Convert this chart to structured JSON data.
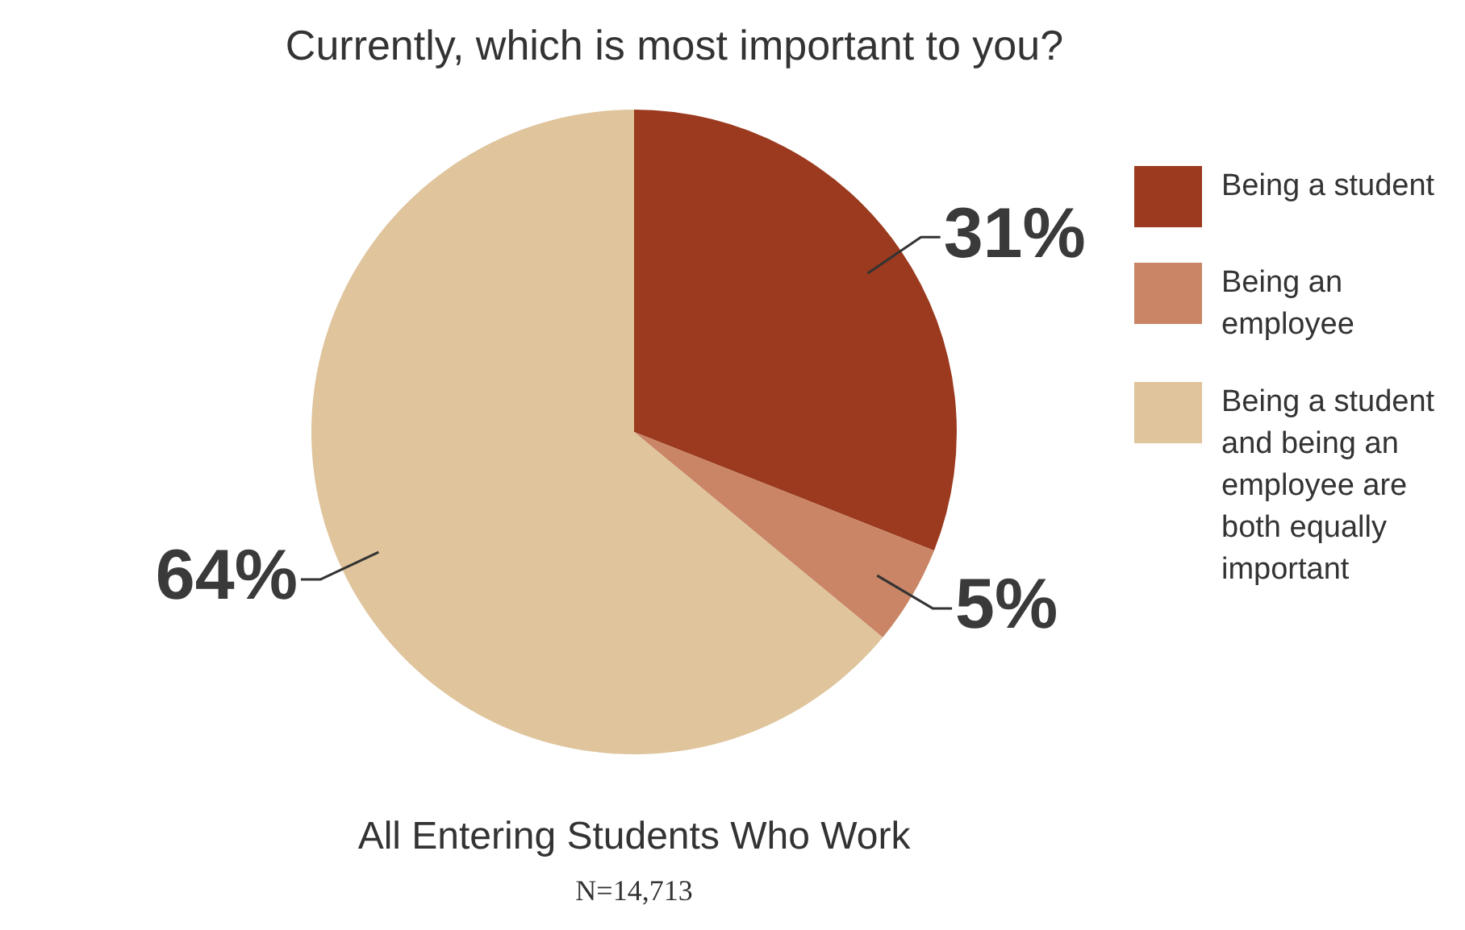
{
  "chart_data": {
    "type": "pie",
    "title": "Currently, which is most important to you?",
    "categories": [
      "Being a student",
      "Being an employee",
      "Being a student and being an employee are both equally important"
    ],
    "values": [
      31,
      5,
      64
    ],
    "colors": [
      "#9b3a1e",
      "#c98566",
      "#dfc49c"
    ],
    "value_labels": [
      "31%",
      "5%",
      "64%"
    ],
    "legend": "right",
    "annotations": [
      "All Entering Students Who Work",
      "N=14,713"
    ]
  }
}
